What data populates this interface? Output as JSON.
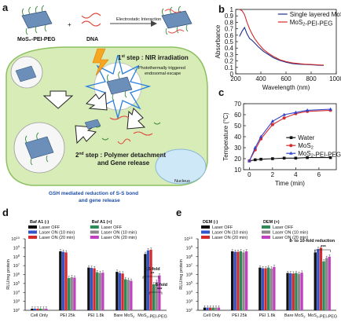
{
  "panels": {
    "a": {
      "label": "a",
      "mos2_complex": "MoS₂-PEI-PEG",
      "dna": "DNA",
      "plus": "+",
      "arrow_label": "Electrostatic Interaction",
      "step1_num": "1",
      "step1_sup": "st",
      "step1_text": " step : NIR irradiation",
      "step1_desc_line1": "Photothermally triggered",
      "step1_desc_line2": "endosomal escape",
      "step2_num": "2",
      "step2_sup": "nd",
      "step2_text": " step : Polymer detachment",
      "step2_text2": "and Gene release",
      "gsh_line1": "GSH mediated reduction of S-S bond",
      "gsh_line2": "and gene release",
      "nucleus": "Nucleus",
      "colors": {
        "cell_fill": "#d8ecb8",
        "cell_border": "#8cc060",
        "nucleus_fill": "#cfe8f8",
        "gsh_text": "#1f4ea8",
        "step_text": "#1a1a1a"
      }
    },
    "b": {
      "label": "b"
    },
    "c": {
      "label": "c"
    },
    "d": {
      "label": "d",
      "group_minus": "Baf A1 (-)",
      "group_plus": "Baf A1 (+)",
      "annot_1": "2.5-fold",
      "annot_1_sig": "**",
      "annot_2": "6-fold",
      "annot_2_sig": "***"
    },
    "e": {
      "label": "e",
      "group_minus": "DEM (-)",
      "group_plus": "DEM (+)",
      "annot_1": "8- to 10-fold reduction",
      "annot_1_sig": "***"
    }
  },
  "chart_data": [
    {
      "id": "b",
      "type": "line",
      "xlabel": "Wavelength (nm)",
      "ylabel": "Absorbance",
      "xlim": [
        200,
        1000
      ],
      "ylim": [
        0,
        1.0
      ],
      "xticks": [
        200,
        400,
        600,
        800,
        1000
      ],
      "yticks": [
        0.0,
        0.1,
        0.2,
        0.3,
        0.4,
        0.5,
        0.6,
        0.7,
        0.8,
        0.9,
        1.0
      ],
      "legend_position": "top-right",
      "series": [
        {
          "name": "Single layered MoS₂",
          "color": "#1f2f8c",
          "x": [
            230,
            250,
            270,
            290,
            310,
            330,
            350,
            380,
            420,
            460,
            500,
            550,
            600,
            650,
            700,
            750,
            800,
            850,
            900
          ],
          "y": [
            0.58,
            0.66,
            0.72,
            0.62,
            0.55,
            0.52,
            0.48,
            0.42,
            0.35,
            0.3,
            0.25,
            0.21,
            0.18,
            0.16,
            0.15,
            0.145,
            0.14,
            0.135,
            0.13
          ]
        },
        {
          "name": "MoS₂-PEI-PEG",
          "color": "#d42c2c",
          "x": [
            230,
            250,
            270,
            290,
            310,
            330,
            350,
            380,
            420,
            460,
            500,
            550,
            600,
            650,
            700,
            750,
            800,
            850,
            900
          ],
          "y": [
            1.0,
            0.98,
            0.92,
            0.8,
            0.7,
            0.62,
            0.55,
            0.47,
            0.38,
            0.32,
            0.27,
            0.22,
            0.19,
            0.17,
            0.16,
            0.15,
            0.145,
            0.14,
            0.135
          ]
        }
      ]
    },
    {
      "id": "c",
      "type": "line",
      "xlabel": "Time (min)",
      "ylabel": "Temperature (°C)",
      "xlim": [
        -0.5,
        7.5
      ],
      "ylim": [
        10,
        70
      ],
      "xticks": [
        0,
        2,
        4,
        6
      ],
      "yticks": [
        10,
        20,
        30,
        40,
        50,
        60,
        70
      ],
      "legend_position": "bottom-right",
      "series": [
        {
          "name": "Water",
          "color": "#111111",
          "marker": "square",
          "x": [
            0,
            0.5,
            1,
            2,
            3,
            4,
            5,
            7
          ],
          "y": [
            18,
            19,
            19.5,
            20,
            20.5,
            20.5,
            21,
            21
          ]
        },
        {
          "name": "MoS₂",
          "color": "#d42c2c",
          "marker": "circle",
          "x": [
            0,
            0.5,
            1,
            2,
            3,
            4,
            5,
            7
          ],
          "y": [
            18,
            28,
            38,
            51,
            57,
            61,
            63,
            64
          ]
        },
        {
          "name": "MoS₂-PEI-PEG",
          "color": "#3344cc",
          "marker": "triangle",
          "x": [
            0,
            0.5,
            1,
            2,
            3,
            4,
            5,
            7
          ],
          "y": [
            18,
            30,
            40,
            54,
            60,
            62,
            64,
            65
          ]
        }
      ]
    },
    {
      "id": "d",
      "type": "bar",
      "ylabel": "RLU/mg protein",
      "yscale": "log",
      "ylim": [
        100,
        10000000000
      ],
      "yticks_exp": [
        2,
        3,
        4,
        5,
        6,
        7,
        8,
        9,
        10
      ],
      "ytick_base": "10",
      "categories": [
        "Cell Only",
        "PEI 25k",
        "PEI 1.8k",
        "Bare MoS₂",
        "MoS₂-PEI-PEG"
      ],
      "legend_position": "top",
      "series": [
        {
          "name": "Laser OFF",
          "group": "Baf A1 (-)",
          "color": "#111111",
          "values": [
            150,
            400000000,
            6000000,
            2000000,
            200000000
          ]
        },
        {
          "name": "Laser ON (10 min)",
          "group": "Baf A1 (-)",
          "color": "#3355cc",
          "values": [
            150,
            350000000,
            5500000,
            1500000,
            500000000
          ]
        },
        {
          "name": "Laser ON (20 min)",
          "group": "Baf A1 (-)",
          "color": "#d42c2c",
          "values": [
            150,
            300000000,
            5000000,
            1300000,
            600000000
          ]
        },
        {
          "name": "Laser OFF",
          "group": "Baf A1 (+)",
          "color": "#2e8b57",
          "values": [
            150,
            400000,
            1800000,
            300000,
            80000
          ]
        },
        {
          "name": "Laser ON (10 min)",
          "group": "Baf A1 (+)",
          "color": "#8a8a8a",
          "values": [
            150,
            500000,
            1500000,
            250000,
            150000
          ]
        },
        {
          "name": "Laser ON (20 min)",
          "group": "Baf A1 (+)",
          "color": "#c040c0",
          "values": [
            150,
            450000,
            1600000,
            200000,
            800000
          ]
        }
      ]
    },
    {
      "id": "e",
      "type": "bar",
      "ylabel": "RLU/mg protein",
      "yscale": "log",
      "ylim": [
        100,
        10000000000
      ],
      "yticks_exp": [
        2,
        3,
        4,
        5,
        6,
        7,
        8,
        9,
        10
      ],
      "ytick_base": "10",
      "categories": [
        "Cell Only",
        "PEI 25k",
        "PEI 1.8k",
        "Bare MoS₂",
        "MoS₂-PEI-PEG"
      ],
      "legend_position": "top",
      "series": [
        {
          "name": "Laser OFF",
          "group": "DEM (-)",
          "color": "#111111",
          "values": [
            200,
            400000000,
            6000000,
            1500000,
            300000000
          ]
        },
        {
          "name": "Laser ON (10 min)",
          "group": "DEM (-)",
          "color": "#3355cc",
          "values": [
            200,
            350000000,
            5000000,
            1400000,
            700000000
          ]
        },
        {
          "name": "Laser ON (20 min)",
          "group": "DEM (-)",
          "color": "#d42c2c",
          "values": [
            200,
            350000000,
            5000000,
            1300000,
            1000000000
          ]
        },
        {
          "name": "Laser OFF",
          "group": "DEM (+)",
          "color": "#2e8b57",
          "values": [
            200,
            400000000,
            6000000,
            1500000,
            30000000
          ]
        },
        {
          "name": "Laser ON (10 min)",
          "group": "DEM (+)",
          "color": "#8a8a8a",
          "values": [
            200,
            300000000,
            4500000,
            1200000,
            70000000
          ]
        },
        {
          "name": "Laser ON (20 min)",
          "group": "DEM (+)",
          "color": "#c040c0",
          "values": [
            200,
            400000000,
            7000000,
            1600000,
            100000000
          ]
        }
      ]
    }
  ]
}
